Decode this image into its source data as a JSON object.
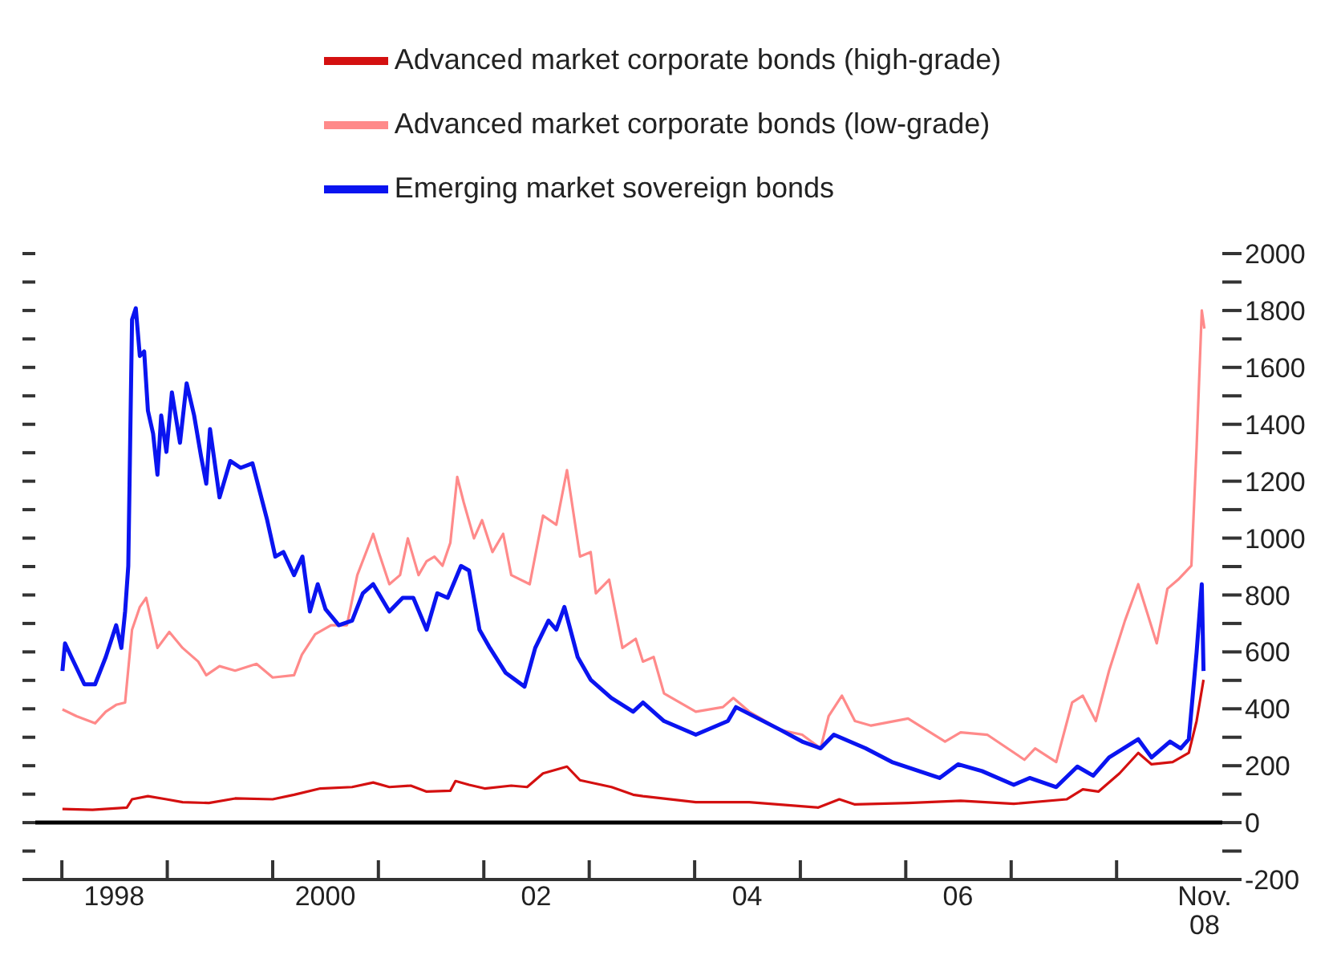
{
  "chart_data": {
    "type": "line",
    "legend": "top",
    "marker": "none",
    "line_style": "solid",
    "xlim": [
      "1997-10",
      "2009-01"
    ],
    "xticks": [
      {
        "value": "1998-01",
        "label": null
      },
      {
        "value": "1998-07",
        "label": "1998"
      },
      {
        "value": "1999-01",
        "label": null
      },
      {
        "value": "2000-01",
        "label": null
      },
      {
        "value": "2000-07",
        "label": "2000"
      },
      {
        "value": "2001-01",
        "label": null
      },
      {
        "value": "2002-01",
        "label": null
      },
      {
        "value": "2002-07",
        "label": "02"
      },
      {
        "value": "2003-01",
        "label": null
      },
      {
        "value": "2004-01",
        "label": null
      },
      {
        "value": "2004-07",
        "label": "04"
      },
      {
        "value": "2005-01",
        "label": null
      },
      {
        "value": "2006-01",
        "label": null
      },
      {
        "value": "2006-07",
        "label": "06"
      },
      {
        "value": "2007-01",
        "label": null
      },
      {
        "value": "2008-01",
        "label": null
      },
      {
        "value": "2008-11",
        "label": "Nov. 08"
      }
    ],
    "ylim": [
      -200,
      2000
    ],
    "yticks": [
      -200,
      {
        "value": -100,
        "label": null
      },
      0,
      {
        "value": 100,
        "label": null
      },
      200,
      {
        "value": 300,
        "label": null
      },
      400,
      {
        "value": 500,
        "label": null
      },
      600,
      {
        "value": 700,
        "label": null
      },
      800,
      {
        "value": 900,
        "label": null
      },
      1000,
      {
        "value": 1100,
        "label": null
      },
      1200,
      {
        "value": 1300,
        "label": null
      },
      1400,
      {
        "value": 1500,
        "label": null
      },
      1600,
      {
        "value": 1700,
        "label": null
      },
      1800,
      {
        "value": 1900,
        "label": null
      },
      2000
    ],
    "ref_lines": [
      {
        "axis": "y",
        "value": 0,
        "color": "#000000"
      }
    ],
    "series": [
      {
        "name": "Advanced market corporate bonds (high-grade)",
        "color": "#d41010",
        "x": [
          "1998-01-03",
          "1998-04-17",
          "1998-08-14",
          "1998-09-01",
          "1998-10-26",
          "1998-12-29",
          "1999-02-23",
          "1999-05-25",
          "1999-08-24",
          "2000-01-01",
          "2000-03-15",
          "2000-06-14",
          "2000-10-02",
          "2000-12-14",
          "2001-02-08",
          "2001-04-23",
          "2001-06-17",
          "2001-09-07",
          "2001-09-25",
          "2001-11-11",
          "2002-01-04",
          "2002-04-06",
          "2002-05-31",
          "2002-07-25",
          "2002-10-16",
          "2002-11-30",
          "2003-03-19",
          "2003-06-02",
          "2003-07-06",
          "2004-01-05",
          "2004-07-08",
          "2005-03-04",
          "2005-05-16",
          "2005-07-09",
          "2006-01-09",
          "2006-07-10",
          "2007-01-10",
          "2007-07-12",
          "2007-09-06",
          "2007-10-30",
          "2008-01-11",
          "2008-03-16",
          "2008-05-01",
          "2008-07-13",
          "2008-09-07",
          "2008-10-04",
          "2008-10-28"
        ],
        "values": [
          48,
          45,
          53,
          82,
          93,
          82,
          72,
          69,
          85,
          82,
          98,
          120,
          125,
          141,
          125,
          130,
          109,
          112,
          146,
          133,
          120,
          130,
          125,
          173,
          197,
          149,
          125,
          98,
          93,
          72,
          72,
          53,
          82,
          64,
          69,
          77,
          66,
          82,
          117,
          109,
          173,
          245,
          205,
          213,
          245,
          357,
          502
        ]
      },
      {
        "name": "Advanced market corporate bonds (low-grade)",
        "color": "#ff8a8a",
        "x": [
          "1998-01-03",
          "1998-02-21",
          "1998-04-26",
          "1998-06-02",
          "1998-07-08",
          "1998-08-08",
          "1998-09-01",
          "1998-09-28",
          "1998-10-20",
          "1998-11-28",
          "1999-01-08",
          "1999-02-23",
          "1999-04-18",
          "1999-05-16",
          "1999-07-01",
          "1999-08-24",
          "1999-11-06",
          "2000-01-01",
          "2000-03-15",
          "2000-04-11",
          "2000-05-27",
          "2000-07-21",
          "2000-09-14",
          "2000-10-20",
          "2000-12-14",
          "2001-01-02",
          "2001-02-08",
          "2001-03-17",
          "2001-04-13",
          "2001-05-20",
          "2001-06-17",
          "2001-07-14",
          "2001-08-11",
          "2001-09-07",
          "2001-10-01",
          "2001-10-23",
          "2001-11-28",
          "2001-12-26",
          "2002-01-31",
          "2002-03-09",
          "2002-04-06",
          "2002-06-09",
          "2002-07-25",
          "2002-09-09",
          "2002-10-16",
          "2002-11-30",
          "2003-01-06",
          "2003-01-24",
          "2003-03-11",
          "2003-04-26",
          "2003-06-11",
          "2003-07-06",
          "2003-08-12",
          "2003-09-17",
          "2004-01-05",
          "2004-04-08",
          "2004-05-14",
          "2004-07-08",
          "2004-10-26",
          "2005-01-07",
          "2005-03-12",
          "2005-04-09",
          "2005-05-25",
          "2005-07-09",
          "2005-09-03",
          "2006-01-09",
          "2006-05-17",
          "2006-07-10",
          "2006-10-10",
          "2007-02-16",
          "2007-03-25",
          "2007-06-06",
          "2007-07-31",
          "2007-09-06",
          "2007-10-21",
          "2007-12-06",
          "2008-01-30",
          "2008-03-16",
          "2008-05-19",
          "2008-06-25",
          "2008-08-01",
          "2008-09-16",
          "2008-10-04",
          "2008-10-22",
          "2008-10-31"
        ],
        "values": [
          398,
          374,
          349,
          390,
          414,
          422,
          678,
          758,
          790,
          614,
          670,
          614,
          566,
          518,
          550,
          534,
          558,
          510,
          518,
          590,
          662,
          694,
          694,
          870,
          1015,
          951,
          838,
          870,
          999,
          870,
          919,
          935,
          903,
          983,
          1215,
          1127,
          999,
          1063,
          951,
          1015,
          870,
          838,
          1079,
          1047,
          1239,
          935,
          951,
          806,
          854,
          614,
          646,
          566,
          582,
          454,
          390,
          406,
          438,
          390,
          325,
          309,
          261,
          374,
          446,
          357,
          341,
          366,
          285,
          317,
          309,
          221,
          261,
          213,
          422,
          446,
          357,
          534,
          710,
          838,
          630,
          822,
          854,
          903,
          1319,
          1800,
          1736
        ]
      },
      {
        "name": "Emerging market sovereign bonds",
        "color": "#0a14f0",
        "x": [
          "1998-01-03",
          "1998-01-12",
          "1998-02-03",
          "1998-03-20",
          "1998-04-26",
          "1998-06-02",
          "1998-07-08",
          "1998-07-26",
          "1998-08-08",
          "1998-08-19",
          "1998-09-01",
          "1998-09-14",
          "1998-09-28",
          "1998-10-13",
          "1998-10-26",
          "1998-11-13",
          "1998-11-28",
          "1998-12-11",
          "1998-12-29",
          "1999-01-17",
          "1999-02-14",
          "1999-03-09",
          "1999-04-04",
          "1999-04-28",
          "1999-05-16",
          "1999-05-29",
          "1999-07-01",
          "1999-08-07",
          "1999-09-12",
          "1999-10-23",
          "1999-12-13",
          "2000-01-10",
          "2000-02-07",
          "2000-03-15",
          "2000-04-13",
          "2000-05-09",
          "2000-06-05",
          "2000-07-02",
          "2000-08-17",
          "2000-10-02",
          "2000-11-08",
          "2000-12-14",
          "2001-02-08",
          "2001-03-26",
          "2001-05-02",
          "2001-06-17",
          "2001-07-24",
          "2001-08-29",
          "2001-10-14",
          "2001-11-11",
          "2001-12-17",
          "2002-01-22",
          "2002-03-18",
          "2002-05-22",
          "2002-06-28",
          "2002-08-13",
          "2002-09-09",
          "2002-10-07",
          "2002-11-22",
          "2003-01-06",
          "2003-03-19",
          "2003-06-02",
          "2003-07-06",
          "2003-09-17",
          "2004-01-05",
          "2004-04-25",
          "2004-05-23",
          "2004-10-26",
          "2005-01-07",
          "2005-03-12",
          "2005-04-27",
          "2005-08-15",
          "2005-11-14",
          "2006-04-28",
          "2006-07-01",
          "2006-09-22",
          "2007-01-10",
          "2007-03-06",
          "2007-06-06",
          "2007-08-18",
          "2007-10-12",
          "2007-12-06",
          "2008-03-16",
          "2008-05-01",
          "2008-07-04",
          "2008-08-10",
          "2008-09-07",
          "2008-10-04",
          "2008-10-22",
          "2008-10-28"
        ],
        "values": [
          533,
          630,
          582,
          486,
          486,
          582,
          694,
          614,
          742,
          902,
          1768,
          1808,
          1640,
          1656,
          1448,
          1367,
          1223,
          1431,
          1303,
          1512,
          1335,
          1544,
          1431,
          1287,
          1191,
          1383,
          1143,
          1271,
          1247,
          1263,
          1063,
          935,
          951,
          870,
          935,
          742,
          838,
          750,
          694,
          710,
          806,
          838,
          742,
          790,
          790,
          678,
          806,
          790,
          902,
          886,
          678,
          614,
          526,
          478,
          614,
          710,
          678,
          758,
          582,
          502,
          438,
          390,
          422,
          357,
          309,
          357,
          406,
          325,
          285,
          261,
          309,
          261,
          213,
          157,
          205,
          181,
          133,
          157,
          125,
          197,
          165,
          229,
          293,
          229,
          285,
          261,
          293,
          598,
          838,
          533
        ]
      }
    ]
  }
}
